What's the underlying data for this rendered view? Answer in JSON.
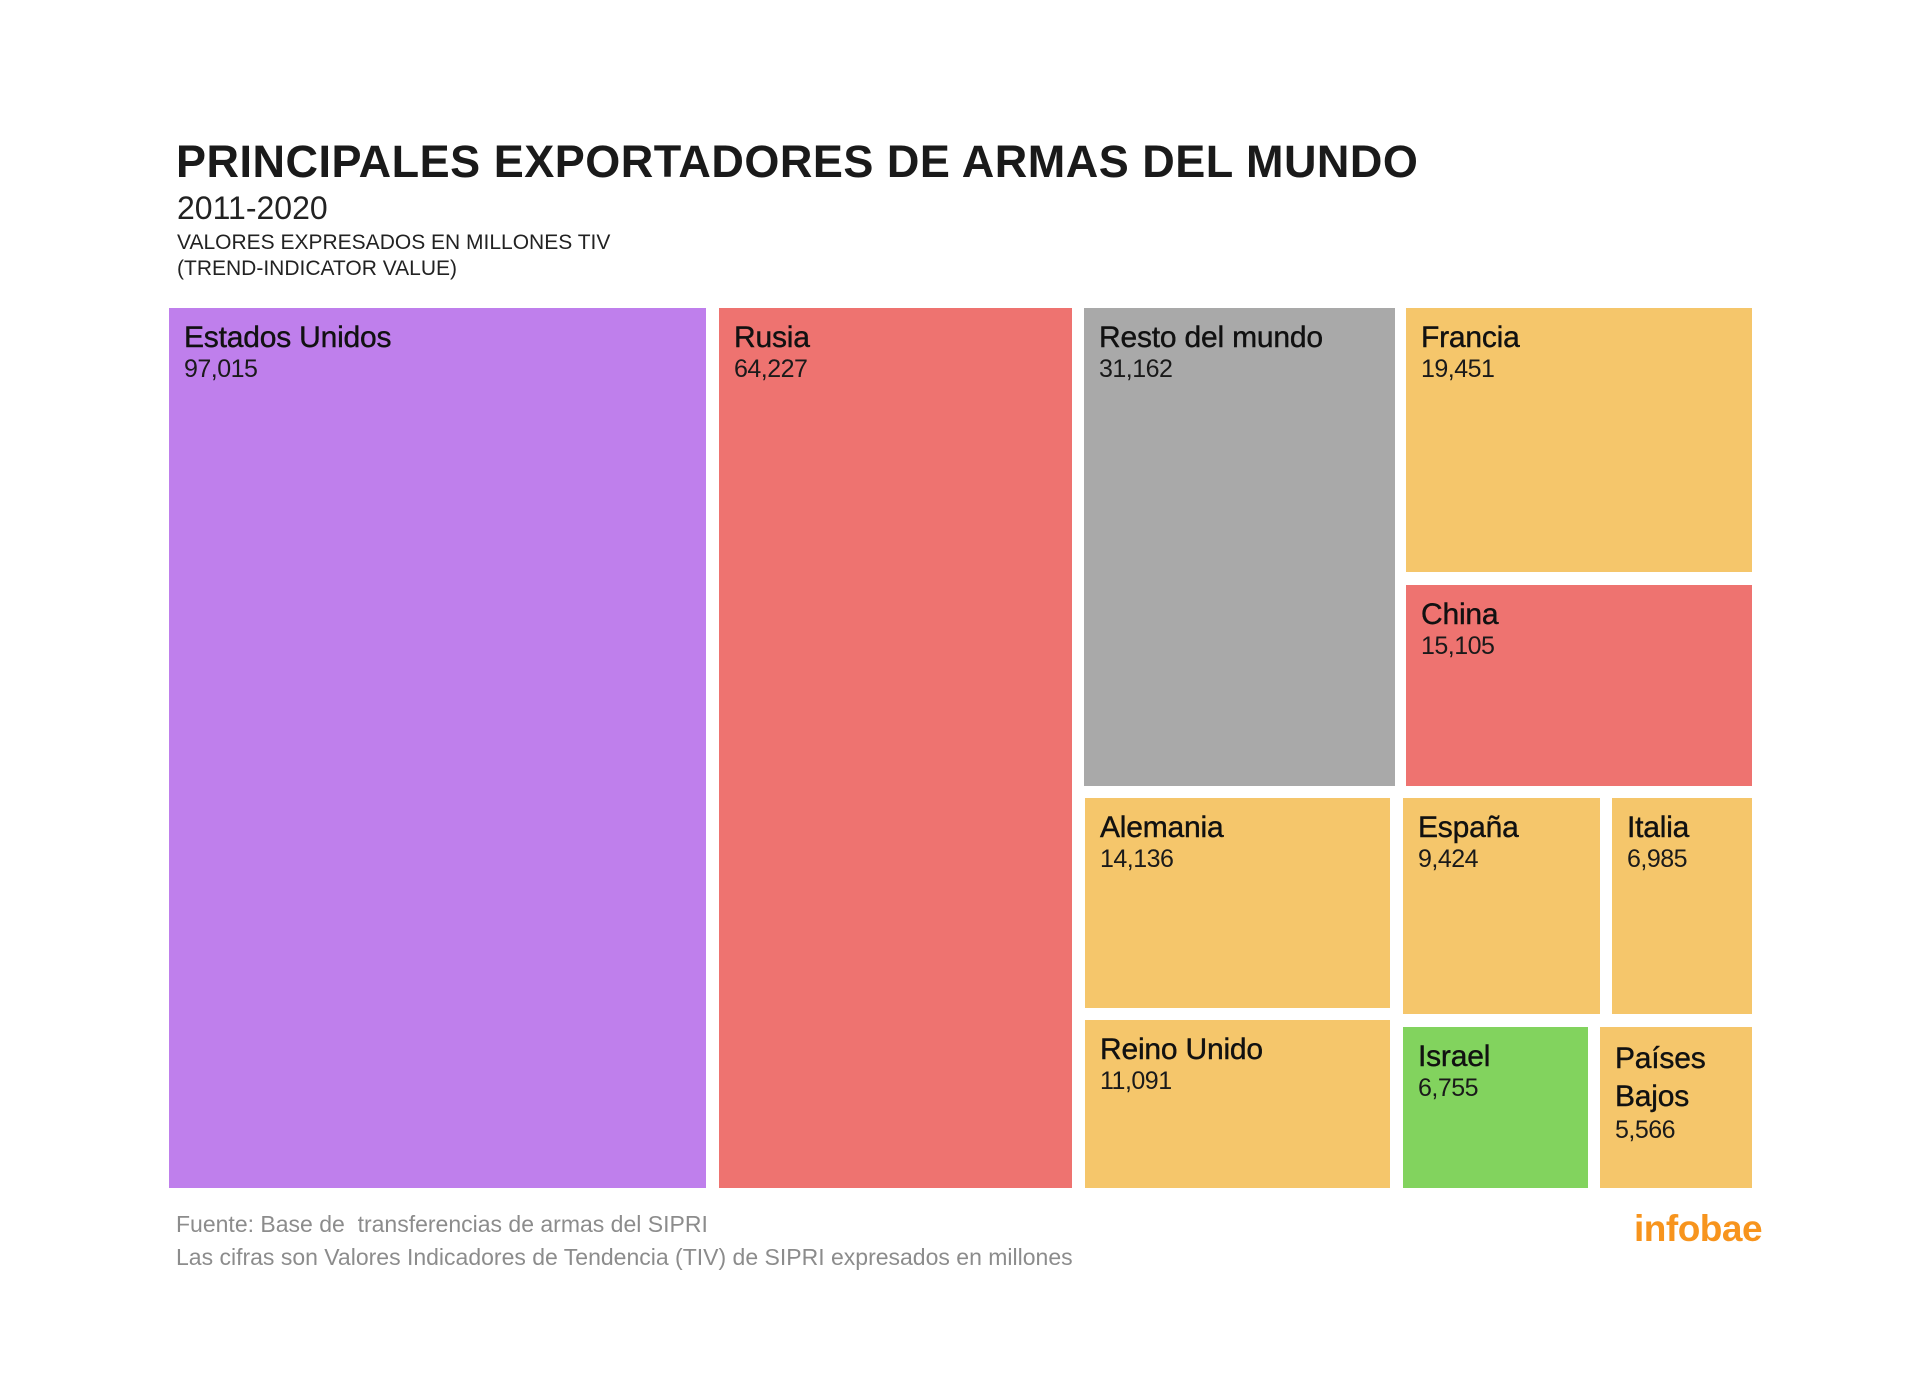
{
  "header": {
    "title": "PRINCIPALES EXPORTADORES DE ARMAS DEL MUNDO",
    "period": "2011-2020",
    "subtitle_line1": "VALORES EXPRESADOS EN MILLONES TIV",
    "subtitle_line2": "(TREND-INDICATOR VALUE)"
  },
  "footer": {
    "source": "Fuente: Base de  transferencias de armas del SIPRI",
    "note": "Las cifras son Valores Indicadores de Tendencia (TIV) de SIPRI expresados en millones",
    "logo": "infobae"
  },
  "colors": {
    "purple": "#bf7fec",
    "red": "#ee7370",
    "grey": "#a9a9a9",
    "amber": "#f5c66b",
    "green": "#82d35e",
    "logo": "#f7941d"
  },
  "chart_data": {
    "type": "treemap",
    "title": "PRINCIPALES EXPORTADORES DE ARMAS DEL MUNDO",
    "subtitle": "2011-2020 — Valores expresados en millones TIV (Trend-Indicator Value)",
    "unit": "millones TIV",
    "items": [
      {
        "name": "Estados Unidos",
        "value": 97015,
        "display": "97,015",
        "color": "purple"
      },
      {
        "name": "Rusia",
        "value": 64227,
        "display": "64,227",
        "color": "red"
      },
      {
        "name": "Resto del mundo",
        "value": 31162,
        "display": "31,162",
        "color": "grey"
      },
      {
        "name": "Francia",
        "value": 19451,
        "display": "19,451",
        "color": "amber"
      },
      {
        "name": "China",
        "value": 15105,
        "display": "15,105",
        "color": "red"
      },
      {
        "name": "Alemania",
        "value": 14136,
        "display": "14,136",
        "color": "amber"
      },
      {
        "name": "España",
        "value": 9424,
        "display": "9,424",
        "color": "amber"
      },
      {
        "name": "Italia",
        "value": 6985,
        "display": "6,985",
        "color": "amber"
      },
      {
        "name": "Reino Unido",
        "value": 11091,
        "display": "11,091",
        "color": "amber"
      },
      {
        "name": "Israel",
        "value": 6755,
        "display": "6,755",
        "color": "green"
      },
      {
        "name": "Países Bajos",
        "value": 5566,
        "display": "5,566",
        "color": "amber"
      }
    ]
  }
}
